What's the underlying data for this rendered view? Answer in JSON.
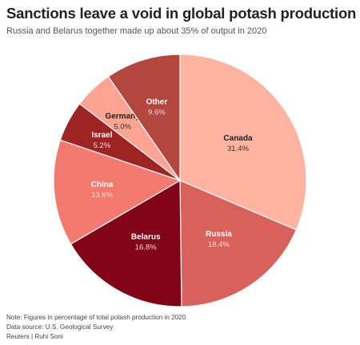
{
  "title": "Sanctions leave a void in global potash production",
  "subtitle": "Russia and Belarus together made up about 35% of output in 2020",
  "footer": {
    "note": "Note: Figures in percentage of total potash production in 2020",
    "source": "Data source: U.S. Geological Survey",
    "credit": "Reuters | Ruhi Soni"
  },
  "chart_data": {
    "type": "pie",
    "unit": "%",
    "categories": [
      "Canada",
      "Russia",
      "Belarus",
      "China",
      "Israel",
      "Germany",
      "Other"
    ],
    "values": [
      31.4,
      18.4,
      16.8,
      13.6,
      5.2,
      5.0,
      9.6
    ],
    "colors": [
      "#ffb3a1",
      "#d9615c",
      "#820417",
      "#f4796e",
      "#9e2323",
      "#ffa393",
      "#b44640"
    ],
    "start": "12 o'clock, clockwise",
    "legend": "none (direct labels)"
  }
}
